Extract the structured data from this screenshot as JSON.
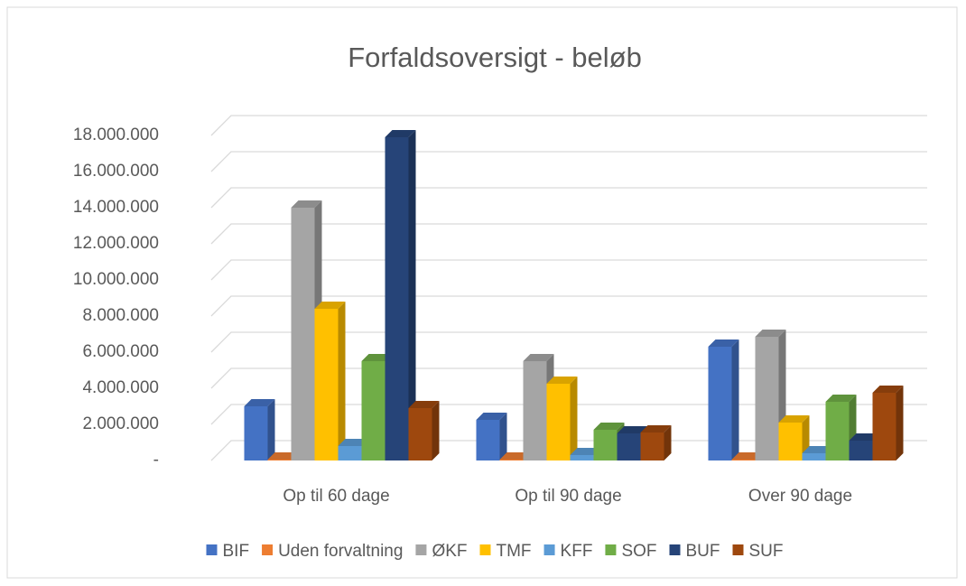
{
  "chart_data": {
    "type": "bar3d",
    "title": "Forfaldsoversigt - beløb",
    "categories": [
      "Op til 60 dage",
      "Op til 90 dage",
      "Over 90 dage"
    ],
    "series": [
      {
        "name": "BIF",
        "color": "#4472c4",
        "values": [
          3000000,
          2250000,
          6300000
        ]
      },
      {
        "name": "Uden forvaltning",
        "color": "#ed7d31",
        "values": [
          50000,
          50000,
          50000
        ]
      },
      {
        "name": "ØKF",
        "color": "#a5a5a5",
        "values": [
          14000000,
          5500000,
          6850000
        ]
      },
      {
        "name": "TMF",
        "color": "#ffc000",
        "values": [
          8400000,
          4250000,
          2100000
        ]
      },
      {
        "name": "KFF",
        "color": "#5b9bd5",
        "values": [
          800000,
          300000,
          400000
        ]
      },
      {
        "name": "SOF",
        "color": "#70ad47",
        "values": [
          5500000,
          1700000,
          3250000
        ]
      },
      {
        "name": "BUF",
        "color": "#264478",
        "values": [
          17900000,
          1500000,
          1100000
        ]
      },
      {
        "name": "SUF",
        "color": "#9e480e",
        "values": [
          2900000,
          1550000,
          3750000
        ]
      }
    ],
    "ylim": [
      0,
      18000000
    ],
    "yticks": [
      {
        "value": 0,
        "label": "-"
      },
      {
        "value": 2000000,
        "label": "2.000.000"
      },
      {
        "value": 4000000,
        "label": "4.000.000"
      },
      {
        "value": 6000000,
        "label": "6.000.000"
      },
      {
        "value": 8000000,
        "label": "8.000.000"
      },
      {
        "value": 10000000,
        "label": "10.000.000"
      },
      {
        "value": 12000000,
        "label": "12.000.000"
      },
      {
        "value": 14000000,
        "label": "14.000.000"
      },
      {
        "value": 16000000,
        "label": "16.000.000"
      },
      {
        "value": 18000000,
        "label": "18.000.000"
      }
    ],
    "grid": true,
    "legend": "bottom"
  }
}
